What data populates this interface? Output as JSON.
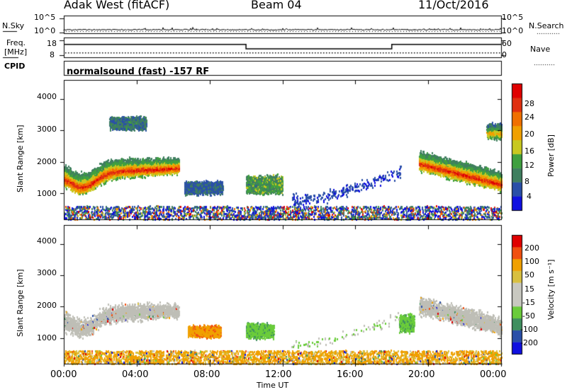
{
  "header": {
    "station": "Adak West (fitACF)",
    "beam": "Beam 04",
    "date": "11/Oct/2016"
  },
  "status_panels": {
    "nsky": {
      "label": "N.Sky",
      "ticks": [
        "10^5",
        "10^0"
      ]
    },
    "nsearch": {
      "label": "N.Search",
      "ticks": [
        "10^5",
        "10^0"
      ]
    },
    "freq": {
      "label_line1": "Freq.",
      "label_line2": "[MHz]",
      "ticks": [
        "18",
        "8"
      ]
    },
    "nave": {
      "label": "Nave",
      "ticks": [
        "60",
        "0"
      ]
    },
    "cpid": {
      "label": "CPID",
      "text": "normalsound (fast) -157 RF"
    }
  },
  "colors": {
    "power_scale": [
      "#1010e0",
      "#2a4fa8",
      "#3f7f5f",
      "#3fa03f",
      "#c8c820",
      "#f0a000",
      "#f07000",
      "#e03010",
      "#e00000"
    ],
    "velocity_scale": [
      "#e00000",
      "#f05010",
      "#f0a000",
      "#d8c040",
      "#c8c8c0",
      "#c8c8c0",
      "#6acc3a",
      "#3f8f5f",
      "#2a4fa8",
      "#1010e0"
    ],
    "ground_scatter": "#bebeb6"
  },
  "chart_data": [
    {
      "type": "line",
      "title": "N.Sky / N.Search",
      "ylabel": "N.Sky",
      "y2label": "N.Search",
      "x": [
        "00:00",
        "04:00",
        "08:00",
        "12:00",
        "16:00",
        "20:00",
        "00:00"
      ],
      "yscale": "log",
      "ylim": [
        "10^0",
        "10^5"
      ],
      "series": [
        {
          "name": "N.Sky",
          "style": "solid",
          "level": "approx 10^0.4, noisy"
        },
        {
          "name": "N.Search",
          "style": "dotted",
          "level": "approx 10^0.2"
        }
      ]
    },
    {
      "type": "line",
      "title": "Freq. / Nave",
      "ylabel": "Freq. [MHz]",
      "y2label": "Nave",
      "ylim": [
        8,
        18
      ],
      "y2lim": [
        0,
        60
      ],
      "series": [
        {
          "name": "Freq.",
          "style": "solid",
          "segments": [
            {
              "from": "00:00",
              "to": "10:00",
              "value": 14.5
            },
            {
              "from": "10:00",
              "to": "18:00",
              "value": 12.3
            },
            {
              "from": "18:00",
              "to": "24:00",
              "value": 14.5
            }
          ]
        },
        {
          "name": "Nave",
          "style": "dotted",
          "value": 15
        }
      ]
    },
    {
      "type": "heatmap",
      "title": "Power",
      "xlabel": "",
      "ylabel": "Slant Range [km]",
      "colorbar_label": "Power [dB]",
      "colorbar_ticks": [
        4,
        8,
        12,
        16,
        20,
        24,
        28
      ],
      "clim": [
        0,
        32
      ],
      "xlim": [
        "00:00",
        "24:00"
      ],
      "ylim": [
        180,
        4600
      ],
      "yticks": [
        1000,
        2000,
        3000,
        4000
      ],
      "features": [
        {
          "name": "morning_band",
          "t_start": 0.0,
          "t_end": 6.3,
          "range_low": 900,
          "range_high": 2700,
          "peak_db": 28
        },
        {
          "name": "morning_upper",
          "t_start": 2.5,
          "t_end": 4.5,
          "range_low": 3000,
          "range_high": 3500,
          "peak_db": 10
        },
        {
          "name": "patch_0800",
          "t_start": 6.6,
          "t_end": 8.7,
          "range_low": 950,
          "range_high": 1450,
          "peak_db": 8
        },
        {
          "name": "patch_1000",
          "t_start": 10.0,
          "t_end": 12.0,
          "range_low": 950,
          "range_high": 1650,
          "peak_db": 14
        },
        {
          "name": "sparse_midday",
          "t_start": 12.5,
          "t_end": 18.5,
          "range_low": 700,
          "range_high": 2200,
          "peak_db": 8
        },
        {
          "name": "evening_band",
          "t_start": 19.5,
          "t_end": 24.0,
          "range_low": 1100,
          "range_high": 2700,
          "peak_db": 28
        },
        {
          "name": "evening_upper",
          "t_start": 23.2,
          "t_end": 24.0,
          "range_low": 2700,
          "range_high": 3300,
          "peak_db": 20
        }
      ]
    },
    {
      "type": "heatmap",
      "title": "Velocity",
      "xlabel": "Time UT",
      "ylabel": "Slant Range [km]",
      "colorbar_label": "Velocity [m s⁻¹]",
      "colorbar_ticks": [
        -200,
        -100,
        -50,
        -15,
        15,
        50,
        100,
        200
      ],
      "clim": [
        -250,
        250
      ],
      "xlim": [
        "00:00",
        "24:00"
      ],
      "xticks": [
        "00:00",
        "04:00",
        "08:00",
        "12:00",
        "16:00",
        "20:00",
        "00:00"
      ],
      "ylim": [
        180,
        4600
      ],
      "yticks": [
        1000,
        2000,
        3000,
        4000
      ],
      "features": [
        {
          "name": "morning_ground_scatter",
          "t_start": 0.0,
          "t_end": 6.3,
          "range_low": 1000,
          "range_high": 2600,
          "velocity": 0
        },
        {
          "name": "patch_0800_neg",
          "t_start": 6.8,
          "t_end": 8.6,
          "range_low": 1000,
          "range_high": 1450,
          "velocity": -60
        },
        {
          "name": "patch_1000_pos",
          "t_start": 10.0,
          "t_end": 11.5,
          "range_low": 950,
          "range_high": 1550,
          "velocity": 40
        },
        {
          "name": "patch_1900_pos",
          "t_start": 18.4,
          "t_end": 19.2,
          "range_low": 1150,
          "range_high": 1850,
          "velocity": 40
        },
        {
          "name": "evening_ground_scatter",
          "t_start": 19.5,
          "t_end": 24.0,
          "range_low": 1100,
          "range_high": 2700,
          "velocity": 0
        }
      ]
    }
  ]
}
